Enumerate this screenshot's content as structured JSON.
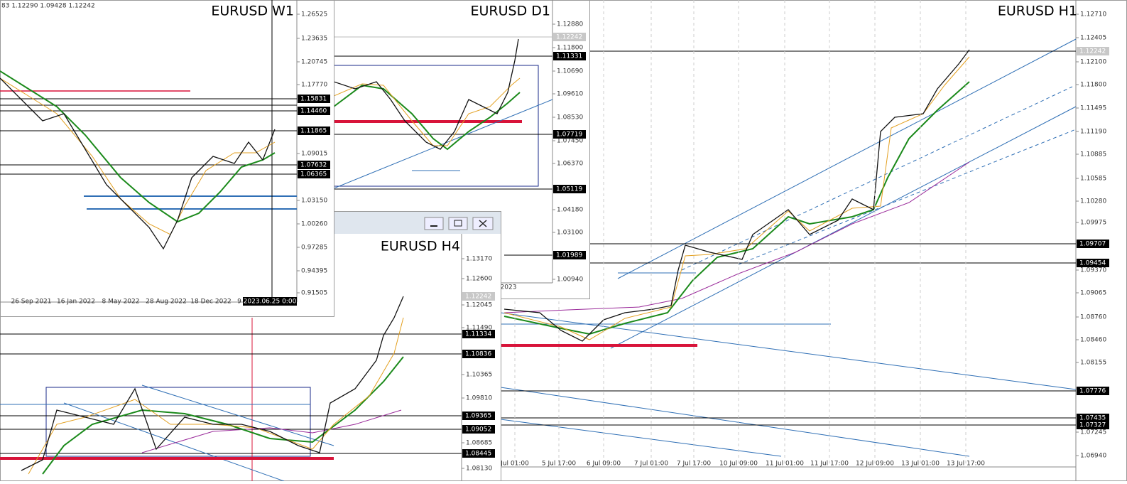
{
  "windows": {
    "h1": {
      "title": "EURUSD H1",
      "price_labels": [
        "1.12710",
        "1.12405",
        "1.12100",
        "1.11800",
        "1.11495",
        "1.11190",
        "1.10885",
        "1.10585",
        "1.10280",
        "1.09975",
        "1.09370",
        "1.09065",
        "1.08760",
        "1.08460",
        "1.08155",
        "1.07245",
        "1.06940"
      ],
      "price_tags": [
        "1.12242",
        "1.09707",
        "1.09454",
        "1.07776",
        "1.07435",
        "1.07327"
      ],
      "time_labels": [
        "Jul 01:00",
        "5 Jul 17:00",
        "6 Jul 09:00",
        "7 Jul 01:00",
        "7 Jul 17:00",
        "10 Jul 09:00",
        "11 Jul 01:00",
        "11 Jul 17:00",
        "12 Jul 09:00",
        "13 Jul 01:00",
        "13 Jul 17:00"
      ]
    },
    "d1": {
      "title": "EURUSD D1",
      "price_labels": [
        "1.12880",
        "1.11800",
        "1.10690",
        "1.09610",
        "1.08530",
        "1.07450",
        "1.06370",
        "1.04180",
        "1.03100",
        "1.00940"
      ],
      "price_tags": [
        "1.12242",
        "1.11331",
        "1.07719",
        "1.05119",
        "1.01989"
      ],
      "time_labels": [
        "2023"
      ]
    },
    "h4": {
      "title": "EURUSD H4",
      "price_labels": [
        "1.13170",
        "1.12600",
        "1.12045",
        "1.11490",
        "1.10365",
        "1.09810",
        "1.08685",
        "1.08130"
      ],
      "price_tags": [
        "1.12242",
        "1.11334",
        "1.10836",
        "1.09365",
        "1.09052",
        "1.08445"
      ],
      "time_labels": []
    },
    "w1": {
      "title": "EURUSD W1",
      "ohlc": "83 1.12290 1.09428 1.12242",
      "price_labels": [
        "1.26525",
        "1.23635",
        "1.20745",
        "1.17770",
        "1.09015",
        "1.03150",
        "1.00260",
        "0.97285",
        "0.94395",
        "0.91505"
      ],
      "price_tags": [
        "1.15831",
        "1.14460",
        "1.11865",
        "1.07632",
        "1.06365"
      ],
      "time_labels": [
        "26 Sep 2021",
        "16 Jan 2022",
        "8 May 2022",
        "28 Aug 2022",
        "18 Dec 2022",
        "9",
        "2023.06.25 0:00"
      ]
    }
  }
}
